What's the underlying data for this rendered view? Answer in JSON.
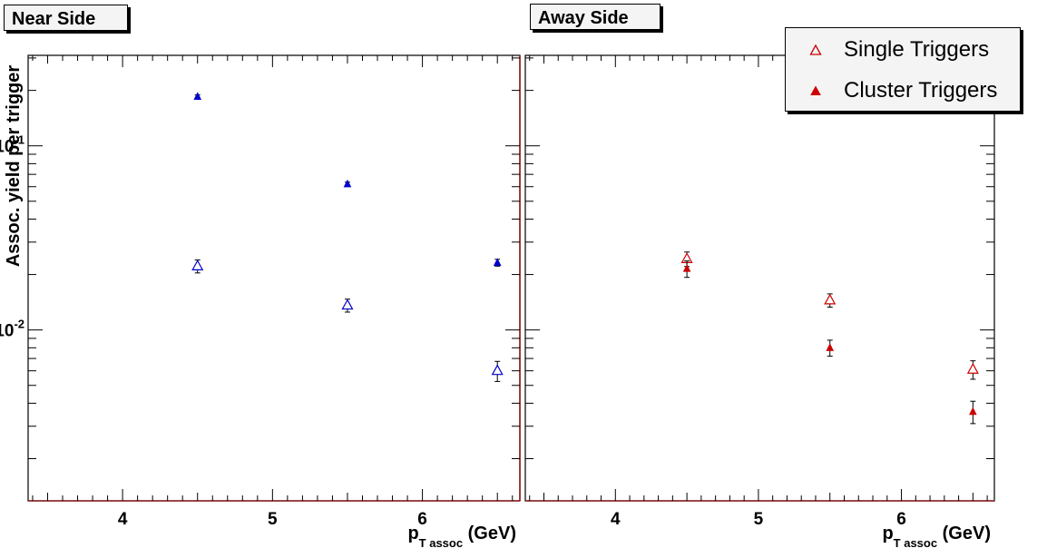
{
  "panels": {
    "near": {
      "title": "Near Side"
    },
    "away": {
      "title": "Away Side"
    }
  },
  "legend": {
    "items": [
      {
        "label": "Single Triggers",
        "marker": "open-triangle",
        "color": "#cc0000"
      },
      {
        "label": "Cluster Triggers",
        "marker": "filled-triangle",
        "color": "#cc0000"
      }
    ]
  },
  "chart_data": [
    {
      "type": "scatter",
      "title": "Near Side",
      "xlabel_main": "p",
      "xlabel_sub": "T assoc",
      "xlabel_unit": "(GeV)",
      "ylabel": "Assoc. yield per trigger",
      "xlim": [
        3.37,
        6.65
      ],
      "ylim": [
        0.00118,
        0.31
      ],
      "y_scale": "log",
      "x_ticks": [
        4,
        5,
        6
      ],
      "y_ticks": [
        {
          "value": 0.1,
          "base": "10",
          "exp": "-1"
        },
        {
          "value": 0.01,
          "base": "10",
          "exp": "-2"
        }
      ],
      "series": [
        {
          "marker": "filled-triangle",
          "color": "#0000cc",
          "points": [
            {
              "x": 4.5,
              "y": 0.185,
              "err": 0.004
            },
            {
              "x": 5.5,
              "y": 0.062,
              "err": 0.0015
            },
            {
              "x": 6.5,
              "y": 0.0232,
              "err": 0.001
            }
          ]
        },
        {
          "marker": "open-triangle",
          "color": "#0000cc",
          "points": [
            {
              "x": 4.5,
              "y": 0.0222,
              "err": 0.0018
            },
            {
              "x": 5.5,
              "y": 0.0136,
              "err": 0.0011
            },
            {
              "x": 6.5,
              "y": 0.006,
              "err": 0.00075
            }
          ]
        }
      ]
    },
    {
      "type": "scatter",
      "title": "Away Side",
      "xlabel_main": "p",
      "xlabel_sub": "T assoc",
      "xlabel_unit": "(GeV)",
      "xlim": [
        3.37,
        6.65
      ],
      "ylim": [
        0.00118,
        0.31
      ],
      "y_scale": "log",
      "x_ticks": [
        4,
        5,
        6
      ],
      "series": [
        {
          "name": "Single Triggers",
          "marker": "open-triangle",
          "color": "#cc0000",
          "points": [
            {
              "x": 4.5,
              "y": 0.0243,
              "err": 0.0022
            },
            {
              "x": 5.5,
              "y": 0.0145,
              "err": 0.0012
            },
            {
              "x": 6.5,
              "y": 0.0061,
              "err": 0.0007
            }
          ]
        },
        {
          "name": "Cluster Triggers",
          "marker": "filled-triangle",
          "color": "#cc0000",
          "points": [
            {
              "x": 4.5,
              "y": 0.0215,
              "err": 0.0022
            },
            {
              "x": 5.5,
              "y": 0.008,
              "err": 0.0008
            },
            {
              "x": 6.5,
              "y": 0.0036,
              "err": 0.0005
            }
          ]
        }
      ]
    }
  ]
}
